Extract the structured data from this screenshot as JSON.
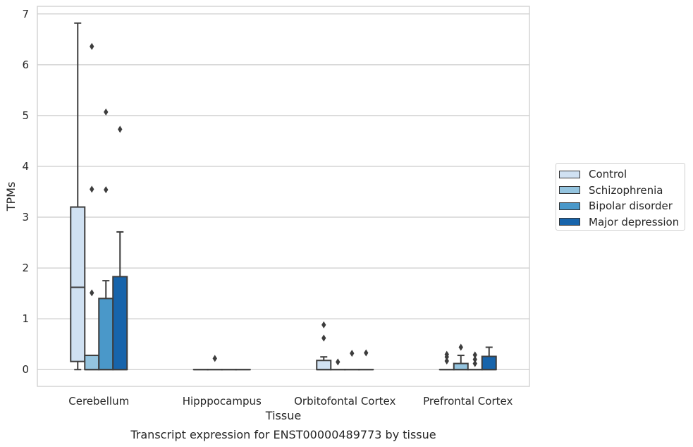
{
  "chart_data": {
    "type": "box",
    "caption": "Transcript expression for ENST00000489773 by tissue",
    "xlabel": "Tissue",
    "ylabel": "TPMs",
    "ylim": [
      -0.33,
      7.15
    ],
    "yticks": [
      0,
      1,
      2,
      3,
      4,
      5,
      6,
      7
    ],
    "grid": true,
    "legend_position": "right",
    "categories": [
      "Cerebellum",
      "Hipppocampus",
      "Orbitofontal Cortex",
      "Prefrontal Cortex"
    ],
    "series": [
      {
        "name": "Control",
        "color": "#d0e1f2",
        "boxes": [
          {
            "min": 0,
            "q1": 0.16,
            "median": 1.62,
            "q3": 3.2,
            "max": 6.82,
            "outliers": []
          },
          {
            "min": 0,
            "q1": 0,
            "median": 0,
            "q3": 0,
            "max": 0,
            "outliers": []
          },
          {
            "min": 0,
            "q1": 0,
            "median": 0,
            "q3": 0.18,
            "max": 0.25,
            "outliers": [
              0.62,
              0.88
            ]
          },
          {
            "min": 0,
            "q1": 0,
            "median": 0,
            "q3": 0,
            "max": 0,
            "outliers": [
              0.17,
              0.25,
              0.3
            ]
          }
        ]
      },
      {
        "name": "Schizophrenia",
        "color": "#94c4df",
        "boxes": [
          {
            "min": 0,
            "q1": 0,
            "median": 0,
            "q3": 0.28,
            "max": 0.28,
            "outliers": [
              1.51,
              3.55,
              6.36
            ]
          },
          {
            "min": 0,
            "q1": 0,
            "median": 0,
            "q3": 0,
            "max": 0,
            "outliers": [
              0.22
            ]
          },
          {
            "min": 0,
            "q1": 0,
            "median": 0,
            "q3": 0,
            "max": 0,
            "outliers": [
              0.15
            ]
          },
          {
            "min": 0,
            "q1": 0,
            "median": 0,
            "q3": 0.12,
            "max": 0.28,
            "outliers": [
              0.44
            ]
          }
        ]
      },
      {
        "name": "Bipolar disorder",
        "color": "#4a98c9",
        "boxes": [
          {
            "min": 0,
            "q1": 0,
            "median": 0,
            "q3": 1.4,
            "max": 1.75,
            "outliers": [
              3.54,
              5.07
            ]
          },
          {
            "min": 0,
            "q1": 0,
            "median": 0,
            "q3": 0,
            "max": 0,
            "outliers": []
          },
          {
            "min": 0,
            "q1": 0,
            "median": 0,
            "q3": 0,
            "max": 0,
            "outliers": [
              0.32
            ]
          },
          {
            "min": 0,
            "q1": 0,
            "median": 0,
            "q3": 0,
            "max": 0,
            "outliers": [
              0.12,
              0.2,
              0.29
            ]
          }
        ]
      },
      {
        "name": "Major depression",
        "color": "#1764ab",
        "boxes": [
          {
            "min": 0,
            "q1": 0,
            "median": 0,
            "q3": 1.83,
            "max": 2.71,
            "outliers": [
              4.73
            ]
          },
          {
            "min": 0,
            "q1": 0,
            "median": 0,
            "q3": 0,
            "max": 0,
            "outliers": []
          },
          {
            "min": 0,
            "q1": 0,
            "median": 0,
            "q3": 0,
            "max": 0,
            "outliers": [
              0.33
            ]
          },
          {
            "min": 0,
            "q1": 0,
            "median": 0,
            "q3": 0.26,
            "max": 0.44,
            "outliers": []
          }
        ]
      }
    ]
  }
}
